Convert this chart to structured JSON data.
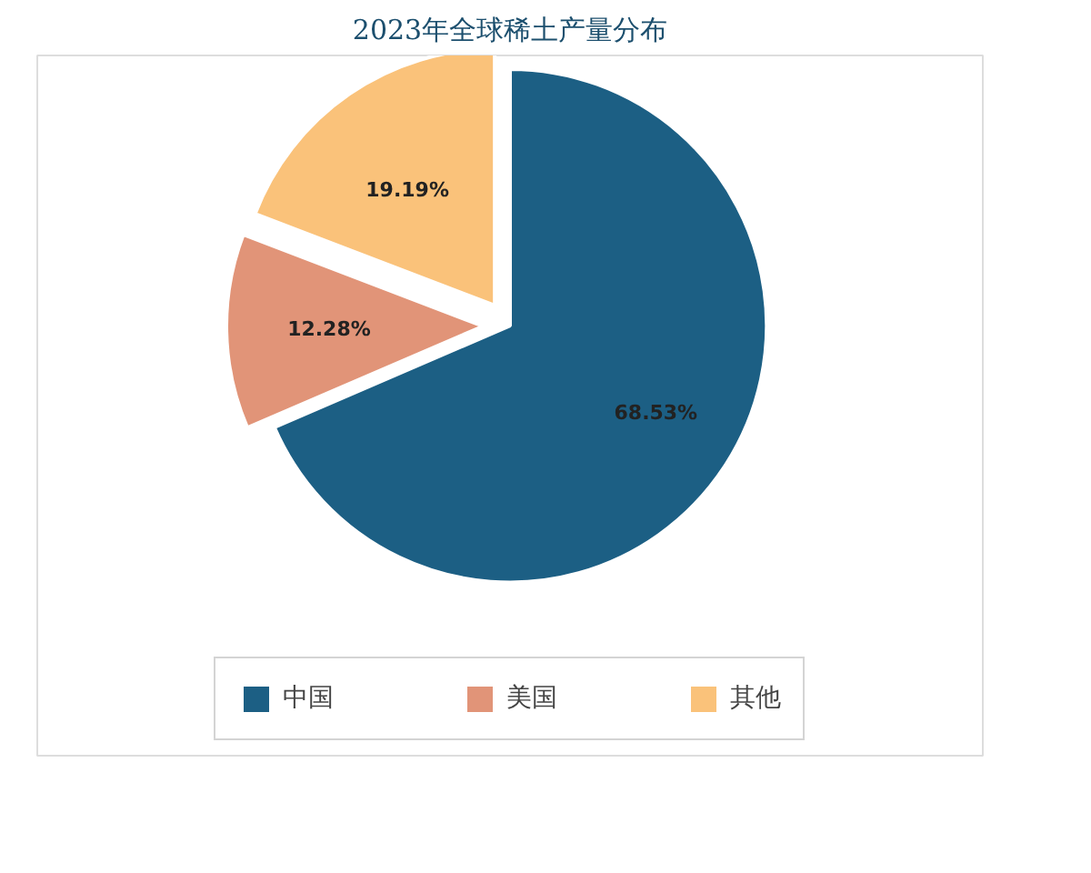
{
  "chart_data": {
    "type": "pie",
    "title": "2023年全球稀土产量分布",
    "categories": [
      "中国",
      "美国",
      "其他"
    ],
    "values": [
      68.53,
      12.28,
      19.19
    ],
    "colors": [
      "#1c5f84",
      "#e19478",
      "#fac27a"
    ],
    "value_labels": [
      "68.53%",
      "12.28%",
      "19.19%"
    ],
    "legend": "bottom"
  }
}
